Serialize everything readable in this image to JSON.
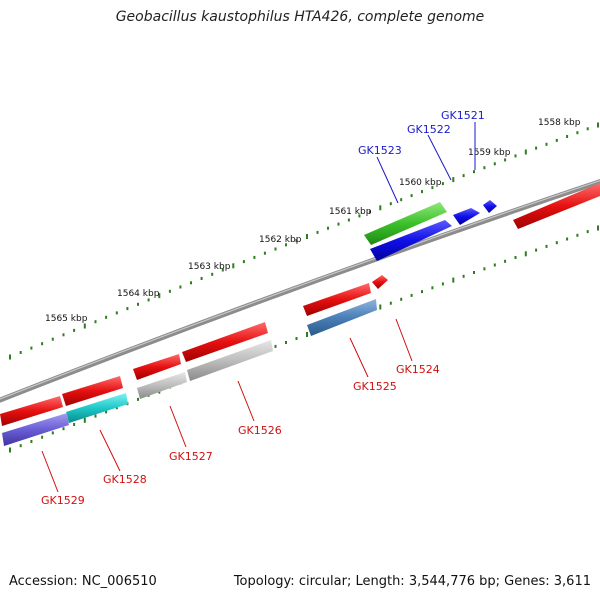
{
  "title": "Geobacillus kaustophilus HTA426, complete genome",
  "footer": {
    "accession_label": "Accession:",
    "accession": "NC_006510",
    "topology_label": "Topology:",
    "topology": "circular",
    "length_label": "Length:",
    "length": "3,544,776 bp",
    "genes_label": "Genes:",
    "genes": "3,611"
  },
  "colors": {
    "backbone": "#8c8c8c",
    "tick": "#2e7d1e",
    "forward_label": "#1a1acc",
    "reverse_label": "#d01010"
  },
  "scale_labels": [
    "1558 kbp",
    "1559 kbp",
    "1560 kbp",
    "1561 kbp",
    "1562 kbp",
    "1563 kbp",
    "1564 kbp",
    "1565 kbp"
  ],
  "genes": [
    {
      "name": "GK1521",
      "strand": "forward",
      "color": "#1a1ae6"
    },
    {
      "name": "GK1522",
      "strand": "forward",
      "color": "#1a1ae6"
    },
    {
      "name": "GK1523",
      "strand": "forward",
      "color": "#1a1ae6"
    },
    {
      "name": "GK1524",
      "strand": "reverse",
      "color": "#e61a1a"
    },
    {
      "name": "GK1525",
      "strand": "reverse",
      "color": "#e61a1a"
    },
    {
      "name": "GK1526",
      "strand": "reverse",
      "color": "#e61a1a"
    },
    {
      "name": "GK1527",
      "strand": "reverse",
      "color": "#e61a1a"
    },
    {
      "name": "GK1528",
      "strand": "reverse",
      "color": "#e61a1a"
    },
    {
      "name": "GK1529",
      "strand": "reverse",
      "color": "#e61a1a"
    }
  ]
}
